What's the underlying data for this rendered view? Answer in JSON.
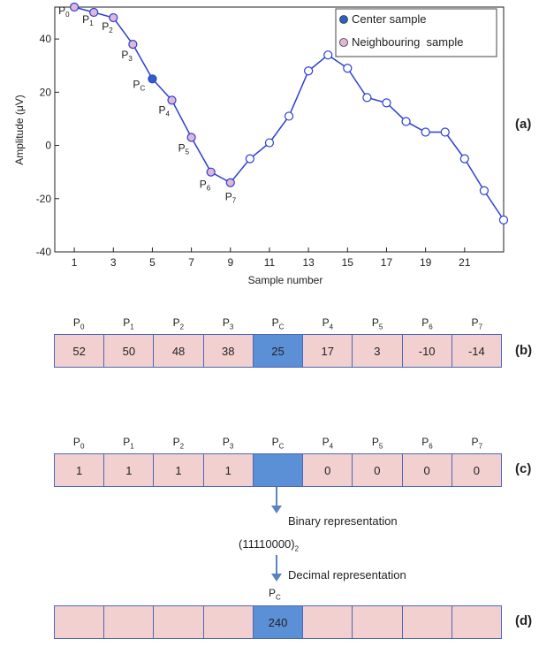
{
  "chart_data": {
    "type": "line",
    "xlabel": "Sample number",
    "ylabel": "Amplitude (μV)",
    "x": [
      1,
      2,
      3,
      4,
      5,
      6,
      7,
      8,
      9,
      10,
      11,
      12,
      13,
      14,
      15,
      16,
      17,
      18,
      19,
      20,
      21,
      22,
      23
    ],
    "y": [
      52,
      50,
      48,
      38,
      25,
      17,
      3,
      -10,
      -14,
      -5,
      1,
      11,
      28,
      34,
      29,
      18,
      16,
      9,
      5,
      5,
      -5,
      -17,
      -28
    ],
    "xlim": [
      0,
      23
    ],
    "ylim": [
      -40,
      52
    ],
    "xticks": [
      "1",
      "3",
      "5",
      "7",
      "9",
      "11",
      "13",
      "15",
      "17",
      "19",
      "21"
    ],
    "yticks": [
      "-40",
      "-20",
      "0",
      "20",
      "40"
    ],
    "center_index": 4,
    "neighbour_indices": [
      0,
      1,
      2,
      3,
      5,
      6,
      7,
      8
    ],
    "point_labels": [
      {
        "index": 0,
        "base": "P",
        "sub": "0"
      },
      {
        "index": 1,
        "base": "P",
        "sub": "1"
      },
      {
        "index": 2,
        "base": "P",
        "sub": "2"
      },
      {
        "index": 3,
        "base": "P",
        "sub": "3"
      },
      {
        "index": 4,
        "base": "P",
        "sub": "C"
      },
      {
        "index": 5,
        "base": "P",
        "sub": "4"
      },
      {
        "index": 6,
        "base": "P",
        "sub": "5"
      },
      {
        "index": 7,
        "base": "P",
        "sub": "6"
      },
      {
        "index": 8,
        "base": "P",
        "sub": "7"
      }
    ],
    "legend": [
      "Center sample",
      "Neighbouring  sample"
    ],
    "legend_position": "top-right",
    "colors": {
      "line": "#2a3fd4",
      "center": "#2f5fc4",
      "neighbour": "#e2b6d6"
    },
    "grid": false
  },
  "panels": {
    "a": "(a)",
    "b": "(b)",
    "c": "(c)",
    "d": "(d)"
  },
  "headers": [
    {
      "base": "P",
      "sub": "0"
    },
    {
      "base": "P",
      "sub": "1"
    },
    {
      "base": "P",
      "sub": "2"
    },
    {
      "base": "P",
      "sub": "3"
    },
    {
      "base": "P",
      "sub": "C"
    },
    {
      "base": "P",
      "sub": "4"
    },
    {
      "base": "P",
      "sub": "5"
    },
    {
      "base": "P",
      "sub": "6"
    },
    {
      "base": "P",
      "sub": "7"
    }
  ],
  "row_b": [
    "52",
    "50",
    "48",
    "38",
    "25",
    "17",
    "3",
    "-10",
    "-14"
  ],
  "row_c": [
    "1",
    "1",
    "1",
    "1",
    "",
    "0",
    "0",
    "0",
    "0"
  ],
  "row_d": [
    "",
    "",
    "",
    "",
    "240",
    "",
    "",
    "",
    ""
  ],
  "binary_label": "Binary representation",
  "binary_value": "(11110000)",
  "binary_sub": "2",
  "decimal_label": "Decimal representation",
  "pc_label": {
    "base": "P",
    "sub": "C"
  }
}
